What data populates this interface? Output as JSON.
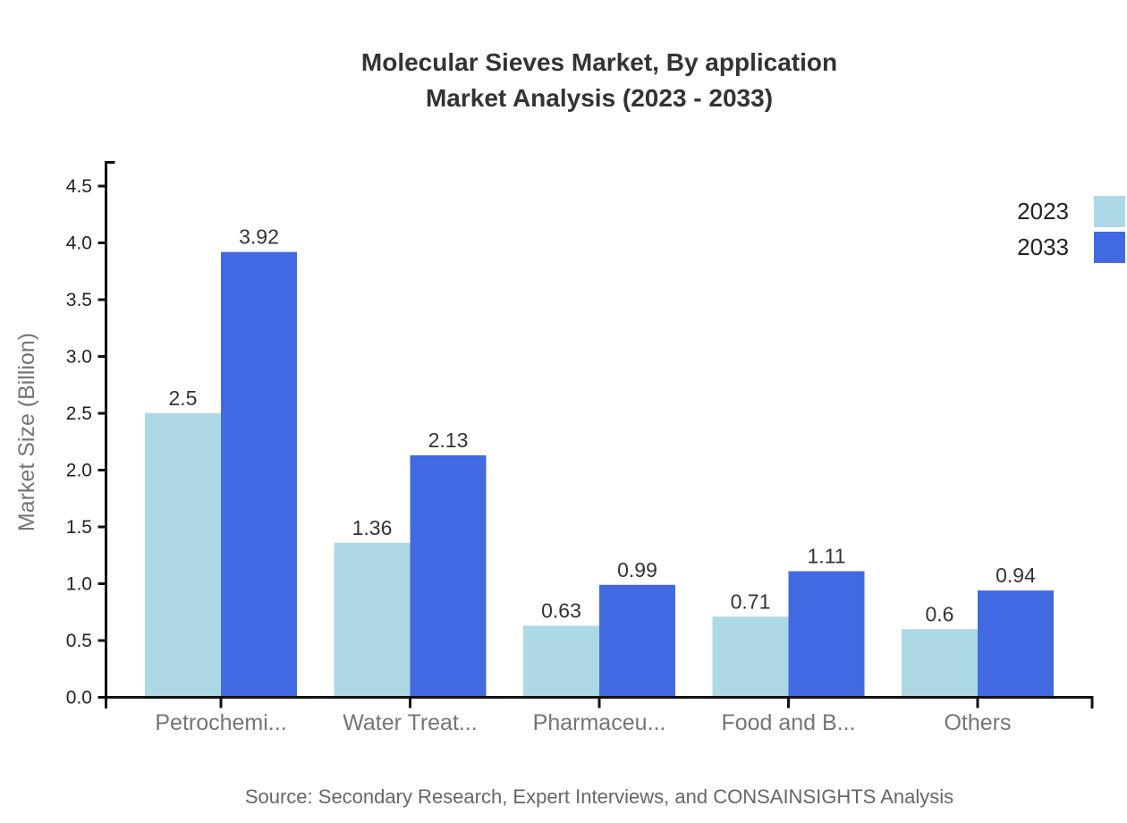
{
  "chart_data": {
    "type": "bar",
    "title": "Molecular Sieves Market, By application Market Analysis (2023 - 2033)",
    "title_lines": [
      "Molecular Sieves Market, By application",
      "Market Analysis (2023 - 2033)"
    ],
    "ylabel": "Market Size (Billion)",
    "xlabel": "",
    "categories": [
      "Petrochemi...",
      "Water Treat...",
      "Pharmaceu...",
      "Food and B...",
      "Others"
    ],
    "series": [
      {
        "name": "2023",
        "color": "#ADD8E6",
        "values": [
          2.5,
          1.36,
          0.63,
          0.71,
          0.6
        ]
      },
      {
        "name": "2033",
        "color": "#4169E1",
        "values": [
          3.92,
          2.13,
          0.99,
          1.11,
          0.94
        ]
      }
    ],
    "y_ticks": [
      0.0,
      0.5,
      1.0,
      1.5,
      2.0,
      2.5,
      3.0,
      3.5,
      4.0,
      4.5
    ],
    "ylim": [
      0,
      4.7
    ],
    "grid": false,
    "legend_position": "top-right",
    "legend_entries": [
      "2023",
      "2033"
    ]
  },
  "footer": {
    "source_text": "Source: Secondary Research, Expert Interviews, and CONSAINSIGHTS Analysis"
  },
  "colors": {
    "background": "#ffffff",
    "series_2023": "#ADD8E6",
    "series_2033": "#4169E1",
    "axis": "#111111",
    "title_text": "#333333",
    "value_label": "#333333",
    "tick_label": "#222222",
    "category_label": "#757575",
    "axis_title": "#757575",
    "source_text": "#666666"
  }
}
